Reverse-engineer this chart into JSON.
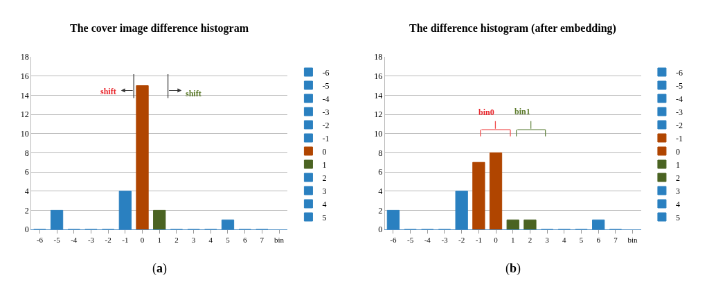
{
  "chart_data": [
    {
      "type": "bar",
      "title": "The cover image difference histogram",
      "categories": [
        "-6",
        "-5",
        "-4",
        "-3",
        "-2",
        "-1",
        "0",
        "1",
        "2",
        "3",
        "4",
        "5",
        "6",
        "7",
        "bin"
      ],
      "ylim": [
        0,
        18
      ],
      "yticks": [
        0,
        2,
        4,
        6,
        8,
        10,
        12,
        14,
        16,
        18
      ],
      "grid": "y",
      "legend": "right",
      "annotations": [
        "shift",
        "shift",
        "(a)"
      ],
      "series": [
        {
          "name": "-6",
          "color": "#2a80c0",
          "values": [
            0,
            null,
            null,
            null,
            null,
            null,
            null,
            null,
            null,
            null,
            null,
            null,
            null,
            null,
            null
          ]
        },
        {
          "name": "-5",
          "color": "#2a80c0",
          "values": [
            null,
            2,
            null,
            null,
            null,
            null,
            null,
            null,
            null,
            null,
            null,
            null,
            null,
            null,
            null
          ]
        },
        {
          "name": "-4",
          "color": "#2a80c0",
          "values": [
            null,
            null,
            0,
            null,
            null,
            null,
            null,
            null,
            null,
            null,
            null,
            null,
            null,
            null,
            null
          ]
        },
        {
          "name": "-3",
          "color": "#2a80c0",
          "values": [
            null,
            null,
            null,
            0,
            null,
            null,
            null,
            null,
            null,
            null,
            null,
            null,
            null,
            null,
            null
          ]
        },
        {
          "name": "-2",
          "color": "#2a80c0",
          "values": [
            null,
            null,
            null,
            null,
            0,
            null,
            null,
            null,
            null,
            null,
            null,
            null,
            null,
            null,
            null
          ]
        },
        {
          "name": "-1",
          "color": "#2a80c0",
          "values": [
            null,
            null,
            null,
            null,
            null,
            4,
            null,
            null,
            null,
            null,
            null,
            null,
            null,
            null,
            null
          ]
        },
        {
          "name": "0",
          "color": "#b04500",
          "values": [
            null,
            null,
            null,
            null,
            null,
            null,
            15,
            null,
            null,
            null,
            null,
            null,
            null,
            null,
            null
          ]
        },
        {
          "name": "1",
          "color": "#4a6322",
          "values": [
            null,
            null,
            null,
            null,
            null,
            null,
            null,
            2,
            null,
            null,
            null,
            null,
            null,
            null,
            null
          ]
        },
        {
          "name": "2",
          "color": "#2a80c0",
          "values": [
            null,
            null,
            null,
            null,
            null,
            null,
            null,
            null,
            0,
            null,
            null,
            null,
            null,
            null,
            null
          ]
        },
        {
          "name": "3",
          "color": "#2a80c0",
          "values": [
            null,
            null,
            null,
            null,
            null,
            null,
            null,
            null,
            null,
            0,
            null,
            null,
            null,
            null,
            null
          ]
        },
        {
          "name": "4",
          "color": "#2a80c0",
          "values": [
            null,
            null,
            null,
            null,
            null,
            null,
            null,
            null,
            null,
            null,
            0,
            null,
            null,
            null,
            null
          ]
        },
        {
          "name": "5",
          "color": "#2a80c0",
          "values": [
            null,
            null,
            null,
            null,
            null,
            null,
            null,
            null,
            null,
            null,
            null,
            1,
            null,
            null,
            null
          ]
        },
        {
          "color": "#2a80c0",
          "values": [
            null,
            null,
            null,
            null,
            null,
            null,
            null,
            null,
            null,
            null,
            null,
            null,
            0,
            null,
            null
          ]
        },
        {
          "color": "#2a80c0",
          "values": [
            null,
            null,
            null,
            null,
            null,
            null,
            null,
            null,
            null,
            null,
            null,
            null,
            null,
            0,
            null
          ]
        }
      ]
    },
    {
      "type": "bar",
      "title": "The difference histogram (after embedding)",
      "categories": [
        "-6",
        "-5",
        "-4",
        "-3",
        "-2",
        "-1",
        "0",
        "1",
        "2",
        "3",
        "4",
        "5",
        "6",
        "7",
        "bin"
      ],
      "ylim": [
        0,
        18
      ],
      "yticks": [
        0,
        2,
        4,
        6,
        8,
        10,
        12,
        14,
        16,
        18
      ],
      "grid": "y",
      "legend": "right",
      "annotations": [
        "bin0",
        "bin1",
        "(b)"
      ],
      "series": [
        {
          "name": "-6",
          "color": "#2a80c0",
          "values": [
            2,
            null,
            null,
            null,
            null,
            null,
            null,
            null,
            null,
            null,
            null,
            null,
            null,
            null,
            null
          ]
        },
        {
          "name": "-5",
          "color": "#2a80c0",
          "values": [
            null,
            0,
            null,
            null,
            null,
            null,
            null,
            null,
            null,
            null,
            null,
            null,
            null,
            null,
            null
          ]
        },
        {
          "name": "-4",
          "color": "#2a80c0",
          "values": [
            null,
            null,
            0,
            null,
            null,
            null,
            null,
            null,
            null,
            null,
            null,
            null,
            null,
            null,
            null
          ]
        },
        {
          "name": "-3",
          "color": "#2a80c0",
          "values": [
            null,
            null,
            null,
            0,
            null,
            null,
            null,
            null,
            null,
            null,
            null,
            null,
            null,
            null,
            null
          ]
        },
        {
          "name": "-2",
          "color": "#2a80c0",
          "values": [
            null,
            null,
            null,
            null,
            4,
            null,
            null,
            null,
            null,
            null,
            null,
            null,
            null,
            null,
            null
          ]
        },
        {
          "name": "-1",
          "color": "#b04500",
          "values": [
            null,
            null,
            null,
            null,
            null,
            7,
            null,
            null,
            null,
            null,
            null,
            null,
            null,
            null,
            null
          ]
        },
        {
          "name": "0",
          "color": "#b04500",
          "values": [
            null,
            null,
            null,
            null,
            null,
            null,
            8,
            null,
            null,
            null,
            null,
            null,
            null,
            null,
            null
          ]
        },
        {
          "name": "1",
          "color": "#4a6322",
          "values": [
            null,
            null,
            null,
            null,
            null,
            null,
            null,
            1,
            null,
            null,
            null,
            null,
            null,
            null,
            null
          ]
        },
        {
          "name": "2",
          "color": "#4a6322",
          "values": [
            null,
            null,
            null,
            null,
            null,
            null,
            null,
            null,
            1,
            null,
            null,
            null,
            null,
            null,
            null
          ]
        },
        {
          "name": "3",
          "color": "#2a80c0",
          "values": [
            null,
            null,
            null,
            null,
            null,
            null,
            null,
            null,
            null,
            0,
            null,
            null,
            null,
            null,
            null
          ]
        },
        {
          "name": "4",
          "color": "#2a80c0",
          "values": [
            null,
            null,
            null,
            null,
            null,
            null,
            null,
            null,
            null,
            null,
            0,
            null,
            null,
            null,
            null
          ]
        },
        {
          "name": "5",
          "color": "#2a80c0",
          "values": [
            null,
            null,
            null,
            null,
            null,
            null,
            null,
            null,
            null,
            null,
            null,
            0,
            null,
            null,
            null
          ]
        },
        {
          "color": "#2a80c0",
          "values": [
            null,
            null,
            null,
            null,
            null,
            null,
            null,
            null,
            null,
            null,
            null,
            null,
            1,
            null,
            null
          ]
        },
        {
          "color": "#2a80c0",
          "values": [
            null,
            null,
            null,
            null,
            null,
            null,
            null,
            null,
            null,
            null,
            null,
            null,
            null,
            0,
            null
          ]
        }
      ]
    }
  ]
}
